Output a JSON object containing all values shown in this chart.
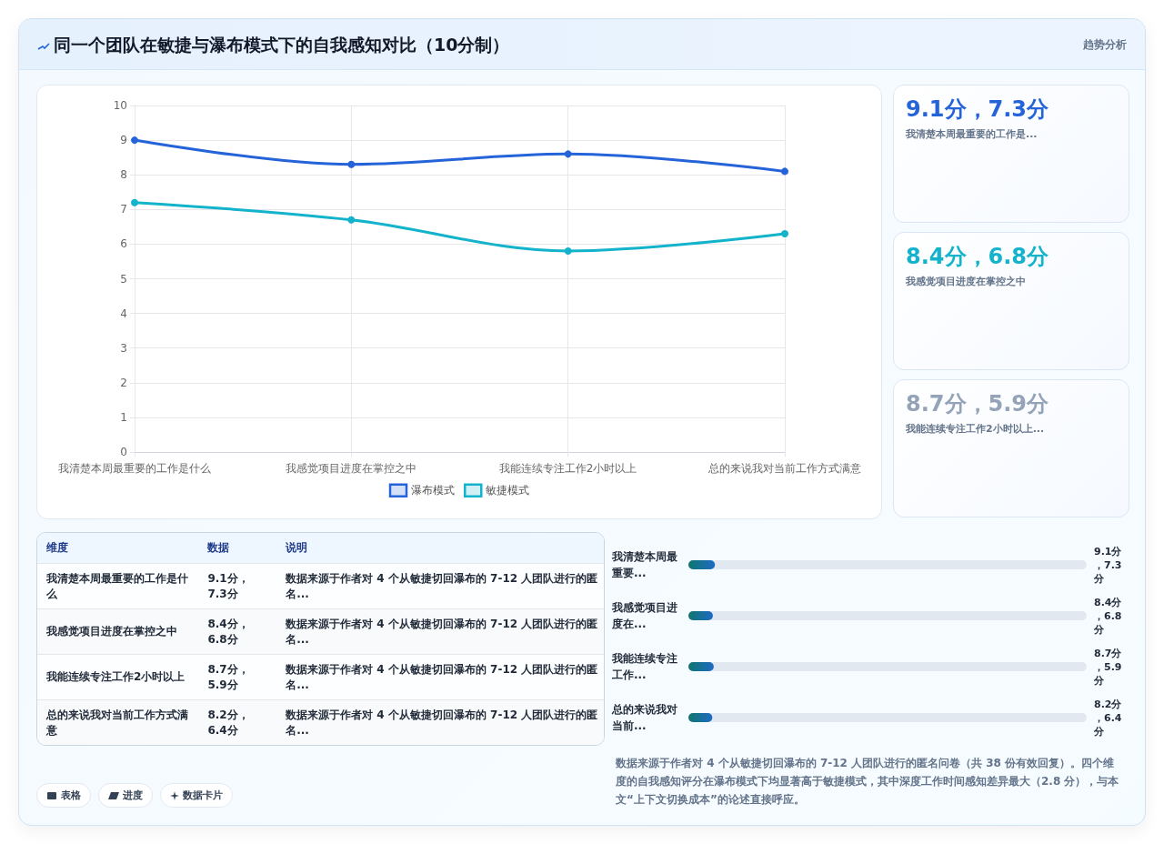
{
  "chart_data": [
    {
      "type": "line",
      "title": "同一个团队在敏捷与瀑布模式下的自我感知对比（10分制）",
      "annotations": [
        "趋势分析"
      ],
      "categories": [
        "我清楚本周最重要的工作是什么",
        "我感觉项目进度在掌控之中",
        "我能连续专注工作2小时以上",
        "总的来说我对当前工作方式满意"
      ],
      "series": [
        {
          "name": "瀑布模式",
          "color": "#2563d9",
          "values": [
            9.0,
            8.3,
            8.6,
            8.1
          ]
        },
        {
          "name": "敏捷模式",
          "color": "#13b3cc",
          "values": [
            7.2,
            6.7,
            5.8,
            6.3
          ]
        }
      ],
      "ylim": [
        0,
        10
      ],
      "yticks": [
        0,
        1,
        2,
        3,
        4,
        5,
        6,
        7,
        8,
        9,
        10
      ],
      "grid": true,
      "legend": "bottom",
      "marker": "circle"
    },
    {
      "type": "other",
      "annotations": [
        "9.1分，7.3分",
        "我清楚本周最重要的工作是...",
        "8.4分，6.8分",
        "我感觉项目进度在掌控之中",
        "8.7分，5.9分",
        "我能连续专注工作2小时以上..."
      ]
    },
    {
      "type": "other",
      "annotations": [
        "维度",
        "数据",
        "说明",
        "我清楚本周最重要的工作是什么",
        "9.1分，7.3分",
        "数据来源于作者对 4 个从敏捷切回瀑布的 7-12 人团队进行的匿名...",
        "我感觉项目进度在掌控之中",
        "8.4分，6.8分",
        "数据来源于作者对 4 个从敏捷切回瀑布的 7-12 人团队进行的匿名...",
        "我能连续专注工作2小时以上",
        "8.7分，5.9分",
        "数据来源于作者对 4 个从敏捷切回瀑布的 7-12 人团队进行的匿名...",
        "总的来说我对当前工作方式满意",
        "8.2分，6.4分",
        "数据来源于作者对 4 个从敏捷切回瀑布的 7-12 人团队进行的匿名..."
      ]
    },
    {
      "type": "bar",
      "orientation": "horizontal",
      "color": "#1e6bc4",
      "categories": [
        "我清楚本周最重要...",
        "我感觉项目进度在...",
        "我能连续专注工作...",
        "总的来说我对当前..."
      ],
      "values": [
        9.1,
        8.4,
        8.7,
        8.2
      ],
      "value_labels": [
        "9.1分，7.3分",
        "8.4分，6.8分",
        "8.7分，5.9分",
        "8.2分，6.4分"
      ],
      "annotations": [
        "数据来源于作者对 4 个从敏捷切回瀑布的 7-12 人团队进行的匿名问卷（共 38 份有效回复）。四个维度的自我感知评分在瀑布模式下均显著高于敏捷模式，其中深度工作时间感知差异最大（2.8 分），与本文“上下文切换成本”的论述直接呼应。"
      ]
    },
    {
      "type": "other",
      "annotations": [
        "表格",
        "进度",
        "数据卡片"
      ]
    }
  ]
}
